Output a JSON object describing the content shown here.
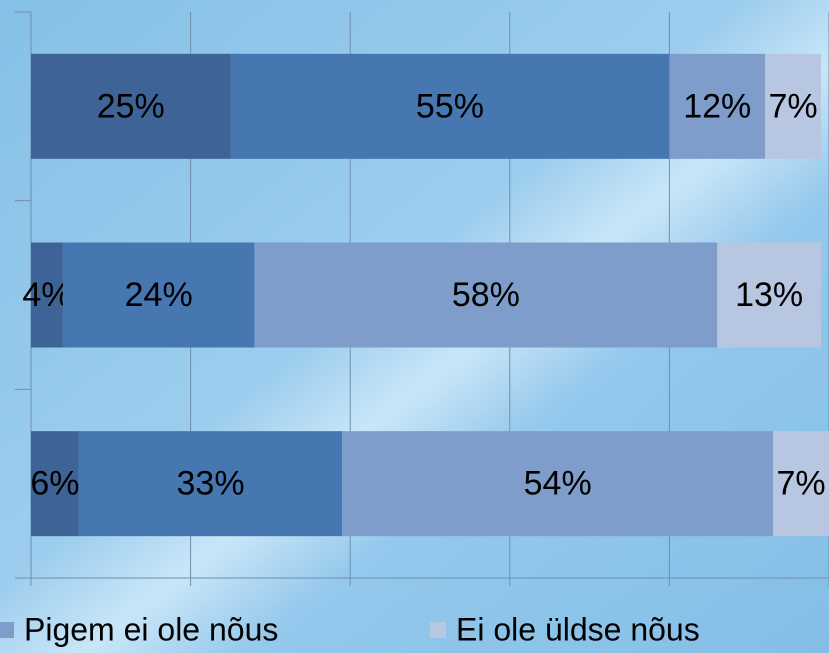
{
  "chart_data": {
    "type": "stacked-bar-horizontal",
    "categories": [
      null,
      null,
      null
    ],
    "series": [
      {
        "name": null,
        "color": "#3e6497",
        "values": [
          25,
          4,
          6
        ],
        "value_labels": [
          "25%",
          "4%",
          "6%"
        ]
      },
      {
        "name": null,
        "color": "#4677b0",
        "values": [
          55,
          24,
          33
        ],
        "value_labels": [
          "55%",
          "24%",
          "33%"
        ]
      },
      {
        "name": "Pigem ei ole nõus",
        "color": "#7e9dca",
        "values": [
          12,
          58,
          54
        ],
        "value_labels": [
          "12%",
          "58%",
          "54%"
        ]
      },
      {
        "name": "Ei ole üldse nõus",
        "color": "#b8c7e1",
        "values": [
          7,
          13,
          7
        ],
        "value_labels": [
          "7%",
          "13%",
          "7%"
        ]
      }
    ],
    "xlim": [
      0,
      100
    ],
    "xticks": [
      0,
      20,
      40,
      60,
      80,
      100
    ],
    "grid": true,
    "legend": "bottom"
  }
}
